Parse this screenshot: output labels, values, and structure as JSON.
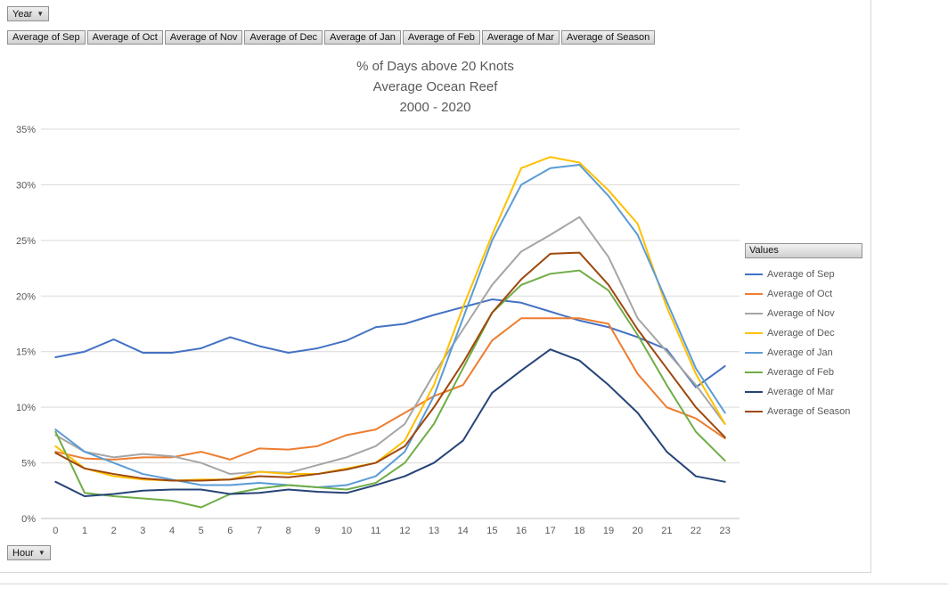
{
  "filters": {
    "year_label": "Year",
    "hour_label": "Hour",
    "dropdown_icon": "▼"
  },
  "field_buttons": [
    "Average of Sep",
    "Average of Oct",
    "Average of Nov",
    "Average of Dec",
    "Average of Jan",
    "Average of Feb",
    "Average of Mar",
    "Average of Season"
  ],
  "legend": {
    "header": "Values"
  },
  "chart_data": {
    "type": "line",
    "title": "% of Days above 20 Knots",
    "title_lines": [
      "% of Days above 20 Knots",
      "Average Ocean Reef",
      "2000 - 2020"
    ],
    "xlabel": "Hour",
    "ylabel": "",
    "ylim": [
      0,
      35
    ],
    "ytick_step": 5,
    "ytick_labels": [
      "0%",
      "5%",
      "10%",
      "15%",
      "20%",
      "25%",
      "30%",
      "35%"
    ],
    "grid": true,
    "legend_position": "right",
    "x": [
      0,
      1,
      2,
      3,
      4,
      5,
      6,
      7,
      8,
      9,
      10,
      11,
      12,
      13,
      14,
      15,
      16,
      17,
      18,
      19,
      20,
      21,
      22,
      23
    ],
    "series": [
      {
        "name": "Average of Sep",
        "color": "#4472C4",
        "values": [
          14.5,
          15.0,
          16.1,
          14.9,
          14.9,
          15.3,
          16.3,
          15.5,
          14.9,
          15.3,
          16.0,
          17.2,
          17.5,
          18.3,
          19.0,
          19.7,
          19.4,
          18.6,
          17.8,
          17.2,
          16.3,
          15.2,
          11.8,
          13.7
        ]
      },
      {
        "name": "Average of Oct",
        "color": "#ED7D31",
        "values": [
          6.0,
          5.4,
          5.3,
          5.5,
          5.5,
          6.0,
          5.3,
          6.3,
          6.2,
          6.5,
          7.5,
          8.0,
          9.5,
          11.0,
          12.0,
          16.0,
          18.0,
          18.0,
          18.0,
          17.5,
          13.0,
          10.0,
          9.0,
          7.2
        ]
      },
      {
        "name": "Average of Nov",
        "color": "#A5A5A5",
        "values": [
          7.5,
          6.0,
          5.5,
          5.8,
          5.6,
          5.0,
          4.0,
          4.2,
          4.1,
          4.8,
          5.5,
          6.5,
          8.5,
          13.0,
          17.0,
          21.0,
          24.0,
          25.5,
          27.1,
          23.5,
          18.0,
          15.0,
          12.0,
          8.5
        ]
      },
      {
        "name": "Average of Dec",
        "color": "#FFC000",
        "values": [
          6.5,
          4.5,
          3.8,
          3.5,
          3.4,
          3.5,
          3.5,
          4.2,
          4.0,
          4.0,
          4.5,
          5.0,
          7.0,
          12.0,
          19.0,
          25.5,
          31.5,
          32.5,
          32.0,
          29.5,
          26.5,
          19.0,
          13.0,
          8.5
        ]
      },
      {
        "name": "Average of Jan",
        "color": "#5B9BD5",
        "values": [
          8.0,
          6.0,
          5.0,
          4.0,
          3.5,
          3.0,
          3.0,
          3.2,
          3.0,
          2.8,
          3.0,
          3.8,
          6.0,
          11.0,
          18.0,
          25.0,
          30.0,
          31.5,
          31.8,
          29.0,
          25.5,
          19.5,
          13.5,
          9.5
        ]
      },
      {
        "name": "Average of Feb",
        "color": "#70AD47",
        "values": [
          7.8,
          2.3,
          2.0,
          1.8,
          1.6,
          1.0,
          2.2,
          2.7,
          3.0,
          2.8,
          2.6,
          3.2,
          5.0,
          8.5,
          13.5,
          18.5,
          21.0,
          22.0,
          22.3,
          20.5,
          16.5,
          12.0,
          7.8,
          5.2
        ]
      },
      {
        "name": "Average of Mar",
        "color": "#264478",
        "values": [
          3.3,
          2.0,
          2.2,
          2.5,
          2.6,
          2.6,
          2.2,
          2.3,
          2.6,
          2.4,
          2.3,
          3.0,
          3.8,
          5.0,
          7.0,
          11.3,
          13.3,
          15.2,
          14.2,
          12.0,
          9.5,
          6.0,
          3.8,
          3.3
        ]
      },
      {
        "name": "Average of Season",
        "color": "#9E480E",
        "values": [
          5.9,
          4.5,
          4.0,
          3.6,
          3.4,
          3.4,
          3.5,
          3.8,
          3.7,
          4.0,
          4.4,
          5.0,
          6.5,
          10.0,
          14.0,
          18.5,
          21.5,
          23.8,
          23.9,
          21.0,
          17.0,
          13.5,
          10.0,
          7.3
        ]
      }
    ]
  }
}
